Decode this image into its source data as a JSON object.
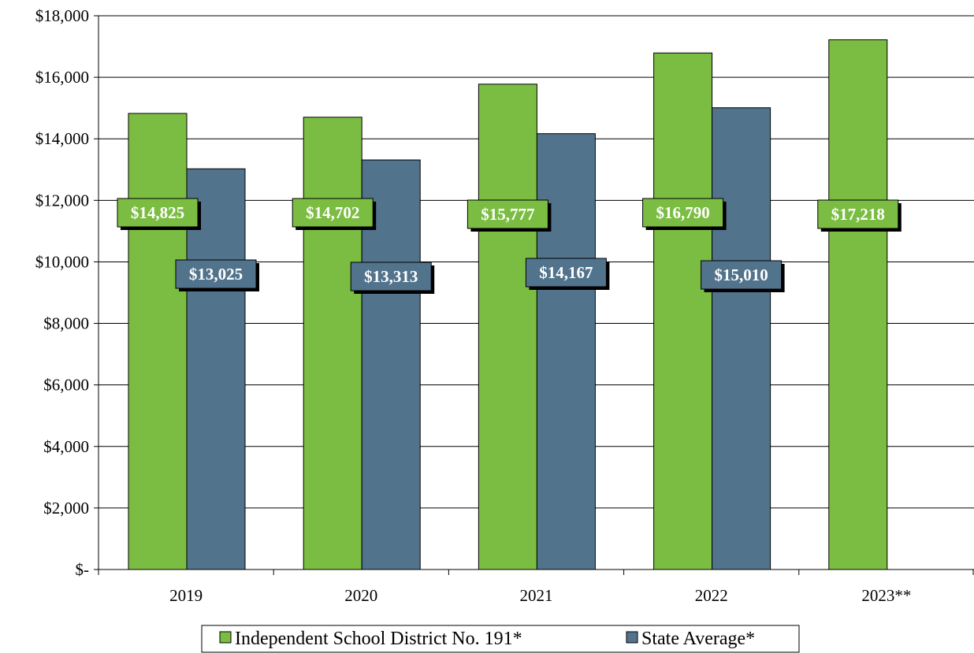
{
  "chart_data": {
    "type": "bar",
    "categories": [
      "2019",
      "2020",
      "2021",
      "2022",
      "2023**"
    ],
    "series": [
      {
        "name": "Independent School District No. 191*",
        "color": "#7bbd42",
        "values": [
          14825,
          14702,
          15777,
          16790,
          17218
        ],
        "labels": [
          "$14,825",
          "$14,702",
          "$15,777",
          "$16,790",
          "$17,218"
        ]
      },
      {
        "name": "State Average*",
        "color": "#52738c",
        "values": [
          13025,
          13313,
          14167,
          15010,
          null
        ],
        "labels": [
          "$13,025",
          "$13,313",
          "$14,167",
          "$15,010",
          null
        ]
      }
    ],
    "ylim": [
      0,
      18000
    ],
    "yticks": [
      0,
      2000,
      4000,
      6000,
      8000,
      10000,
      12000,
      14000,
      16000,
      18000
    ],
    "ytick_labels": [
      "$-",
      "$2,000",
      "$4,000",
      "$6,000",
      "$8,000",
      "$10,000",
      "$12,000",
      "$14,000",
      "$16,000",
      "$18,000"
    ],
    "grid": true,
    "legend_position": "bottom",
    "title": "",
    "xlabel": "",
    "ylabel": ""
  }
}
